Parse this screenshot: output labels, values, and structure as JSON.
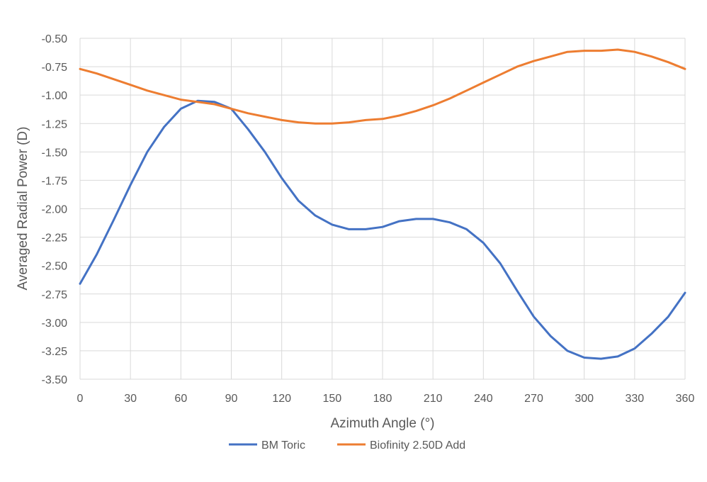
{
  "chart_data": {
    "type": "line",
    "title": "",
    "xlabel": "Azimuth Angle (°)",
    "ylabel": "Averaged Radial Power (D)",
    "xlim": [
      0,
      360
    ],
    "ylim": [
      -3.5,
      -0.5
    ],
    "xticks": [
      0,
      30,
      60,
      90,
      120,
      150,
      180,
      210,
      240,
      270,
      300,
      330,
      360
    ],
    "yticks": [
      -0.5,
      -0.75,
      -1.0,
      -1.25,
      -1.5,
      -1.75,
      -2.0,
      -2.25,
      -2.5,
      -2.75,
      -3.0,
      -3.25,
      -3.5
    ],
    "ytick_labels": [
      "-0.50",
      "-0.75",
      "-1.00",
      "-1.25",
      "-1.50",
      "-1.75",
      "-2.00",
      "-2.25",
      "-2.50",
      "-2.75",
      "-3.00",
      "-3.25",
      "-3.50"
    ],
    "grid": true,
    "legend_position": "bottom",
    "series": [
      {
        "name": "BM Toric",
        "color": "#4472C4",
        "x": [
          0,
          10,
          20,
          30,
          40,
          50,
          60,
          70,
          80,
          90,
          100,
          110,
          120,
          130,
          140,
          150,
          160,
          170,
          180,
          190,
          200,
          210,
          220,
          230,
          240,
          250,
          260,
          270,
          280,
          290,
          300,
          310,
          320,
          330,
          340,
          350,
          360
        ],
        "y": [
          -2.66,
          -2.4,
          -2.1,
          -1.79,
          -1.5,
          -1.28,
          -1.12,
          -1.05,
          -1.06,
          -1.12,
          -1.3,
          -1.5,
          -1.73,
          -1.93,
          -2.06,
          -2.14,
          -2.18,
          -2.18,
          -2.16,
          -2.11,
          -2.09,
          -2.09,
          -2.12,
          -2.18,
          -2.3,
          -2.48,
          -2.72,
          -2.95,
          -3.12,
          -3.25,
          -3.31,
          -3.32,
          -3.3,
          -3.23,
          -3.1,
          -2.95,
          -2.74
        ]
      },
      {
        "name": "Biofinity 2.50D Add",
        "color": "#ED7D31",
        "x": [
          0,
          10,
          20,
          30,
          40,
          50,
          60,
          70,
          80,
          90,
          100,
          110,
          120,
          130,
          140,
          150,
          160,
          170,
          180,
          190,
          200,
          210,
          220,
          230,
          240,
          250,
          260,
          270,
          280,
          290,
          300,
          310,
          320,
          330,
          340,
          350,
          360
        ],
        "y": [
          -0.77,
          -0.81,
          -0.86,
          -0.91,
          -0.96,
          -1.0,
          -1.04,
          -1.06,
          -1.08,
          -1.12,
          -1.16,
          -1.19,
          -1.22,
          -1.24,
          -1.25,
          -1.25,
          -1.24,
          -1.22,
          -1.21,
          -1.18,
          -1.14,
          -1.09,
          -1.03,
          -0.96,
          -0.89,
          -0.82,
          -0.75,
          -0.7,
          -0.66,
          -0.62,
          -0.61,
          -0.61,
          -0.6,
          -0.62,
          -0.66,
          -0.71,
          -0.77
        ]
      }
    ]
  }
}
